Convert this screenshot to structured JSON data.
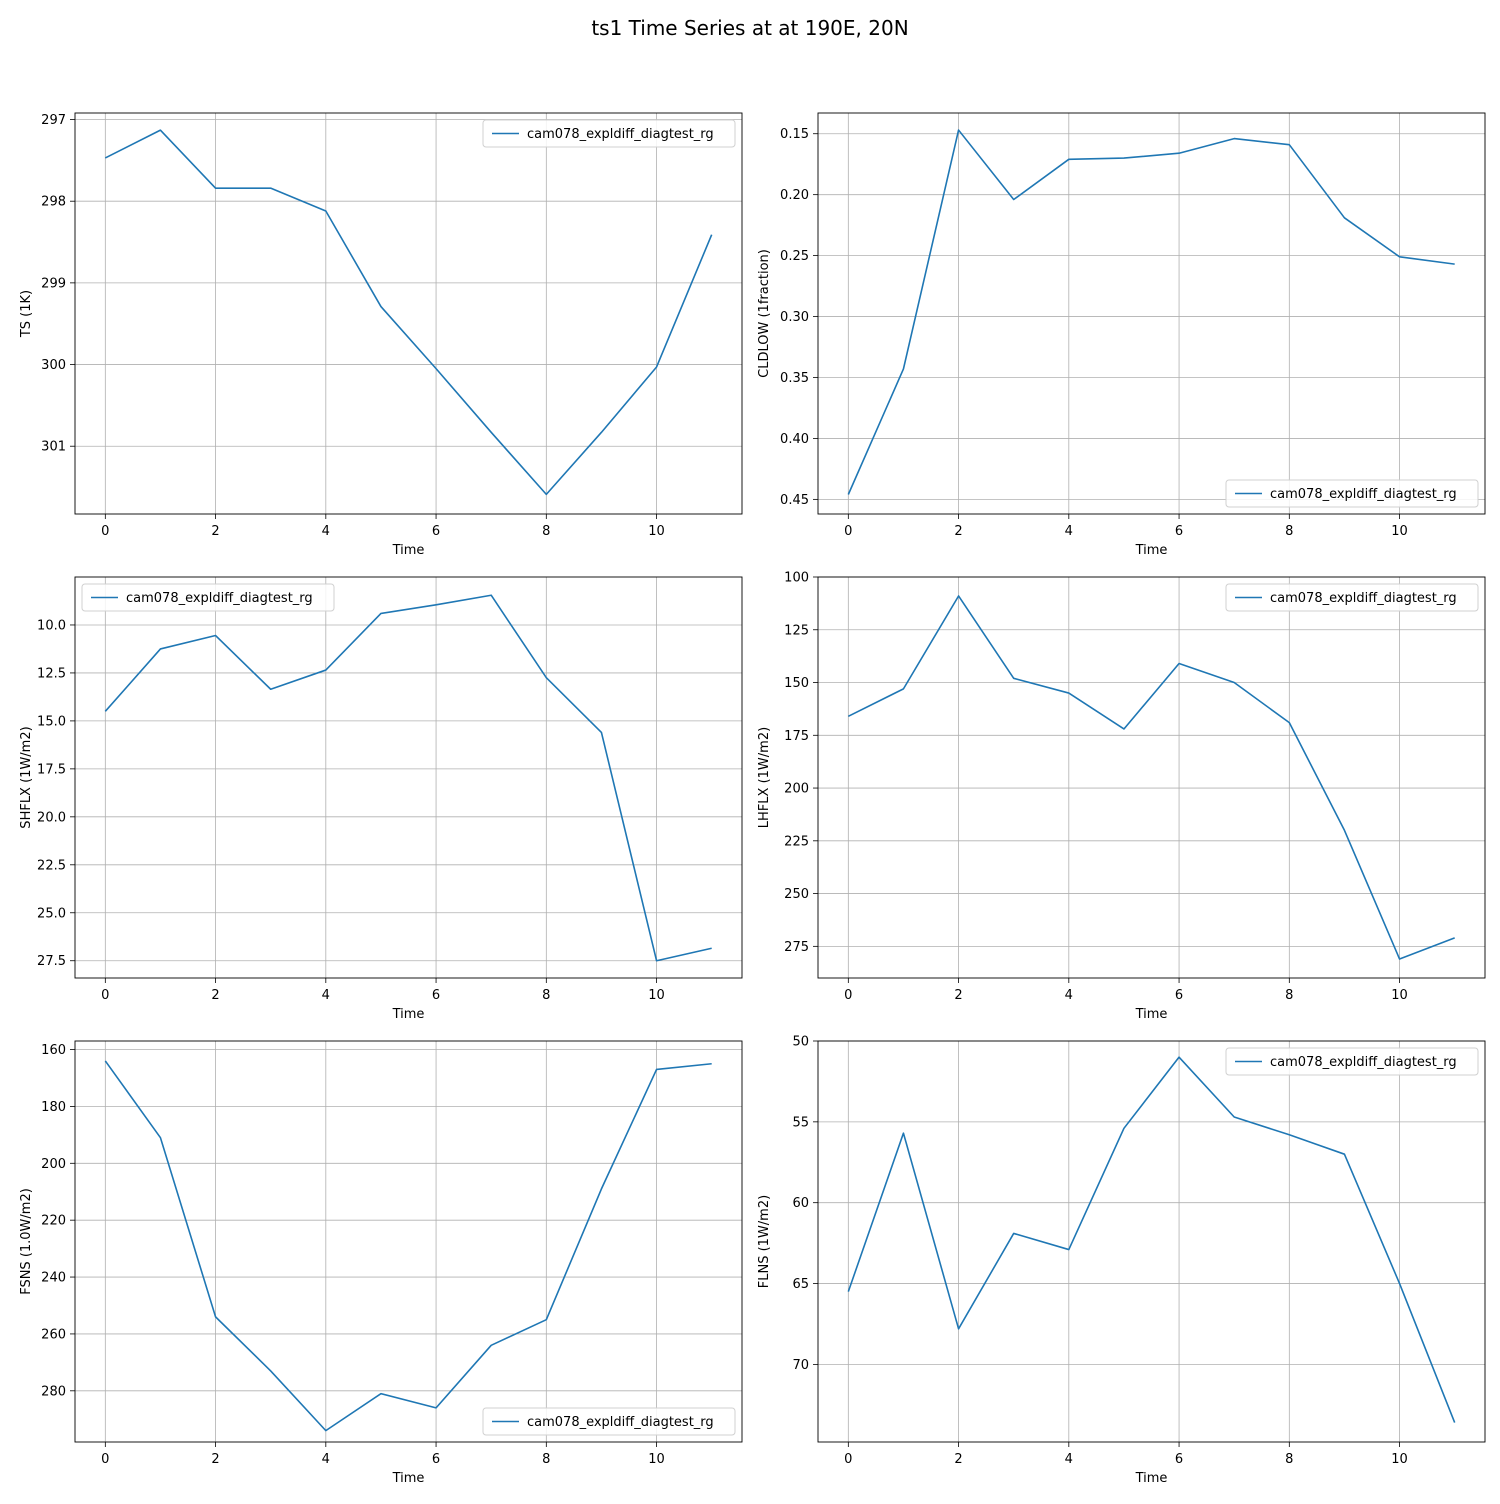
{
  "figure": {
    "title": "ts1 Time Series at at 190E, 20N"
  },
  "chart_data": [
    {
      "type": "line",
      "xlabel": "Time",
      "ylabel": "TS (1K)",
      "x": [
        0,
        1,
        2,
        3,
        4,
        5,
        6,
        7,
        8,
        9,
        10,
        11
      ],
      "xlim": [
        -0.55,
        11.55
      ],
      "xticks": [
        0,
        2,
        4,
        6,
        8,
        10
      ],
      "ylim": [
        301.83,
        296.92
      ],
      "yinverted": true,
      "yticks": [
        297,
        298,
        299,
        300,
        301
      ],
      "yticklabels": [
        "297",
        "298",
        "299",
        "300",
        "301"
      ],
      "grid": true,
      "legend": "top-right",
      "series": [
        {
          "name": "cam078_expldiff_diagtest_rg",
          "color": "#1f77b4",
          "values": [
            297.47,
            297.13,
            297.84,
            297.84,
            298.12,
            299.29,
            300.05,
            300.83,
            301.59,
            300.83,
            300.03,
            298.41
          ]
        }
      ]
    },
    {
      "type": "line",
      "xlabel": "Time",
      "ylabel": "CLDLOW (1fraction)",
      "x": [
        0,
        1,
        2,
        3,
        4,
        5,
        6,
        7,
        8,
        9,
        10,
        11
      ],
      "xlim": [
        -0.55,
        11.55
      ],
      "xticks": [
        0,
        2,
        4,
        6,
        8,
        10
      ],
      "ylim": [
        0.462,
        0.133
      ],
      "yinverted": true,
      "yticks": [
        0.15,
        0.2,
        0.25,
        0.3,
        0.35,
        0.4,
        0.45
      ],
      "yticklabels": [
        "0.15",
        "0.20",
        "0.25",
        "0.30",
        "0.35",
        "0.40",
        "0.45"
      ],
      "grid": true,
      "legend": "bottom-right",
      "series": [
        {
          "name": "cam078_expldiff_diagtest_rg",
          "color": "#1f77b4",
          "values": [
            0.446,
            0.343,
            0.147,
            0.204,
            0.171,
            0.17,
            0.166,
            0.154,
            0.159,
            0.219,
            0.251,
            0.257
          ]
        }
      ]
    },
    {
      "type": "line",
      "xlabel": "Time",
      "ylabel": "SHFLX (1W/m2)",
      "x": [
        0,
        1,
        2,
        3,
        4,
        5,
        6,
        7,
        8,
        9,
        10,
        11
      ],
      "xlim": [
        -0.55,
        11.55
      ],
      "xticks": [
        0,
        2,
        4,
        6,
        8,
        10
      ],
      "ylim": [
        28.4,
        7.5
      ],
      "yinverted": true,
      "yticks": [
        10.0,
        12.5,
        15.0,
        17.5,
        20.0,
        22.5,
        25.0,
        27.5
      ],
      "yticklabels": [
        "10.0",
        "12.5",
        "15.0",
        "17.5",
        "20.0",
        "22.5",
        "25.0",
        "27.5"
      ],
      "grid": true,
      "legend": "top-left",
      "series": [
        {
          "name": "cam078_expldiff_diagtest_rg",
          "color": "#1f77b4",
          "values": [
            14.5,
            11.25,
            10.55,
            13.35,
            12.35,
            9.4,
            8.95,
            8.45,
            12.75,
            15.6,
            27.5,
            26.85
          ]
        }
      ]
    },
    {
      "type": "line",
      "xlabel": "Time",
      "ylabel": "LHFLX (1W/m2)",
      "x": [
        0,
        1,
        2,
        3,
        4,
        5,
        6,
        7,
        8,
        9,
        10,
        11
      ],
      "xlim": [
        -0.55,
        11.55
      ],
      "xticks": [
        0,
        2,
        4,
        6,
        8,
        10
      ],
      "ylim": [
        290,
        100
      ],
      "yinverted": true,
      "yticks": [
        100,
        125,
        150,
        175,
        200,
        225,
        250,
        275
      ],
      "yticklabels": [
        "100",
        "125",
        "150",
        "175",
        "200",
        "225",
        "250",
        "275"
      ],
      "grid": true,
      "legend": "top-right",
      "series": [
        {
          "name": "cam078_expldiff_diagtest_rg",
          "color": "#1f77b4",
          "values": [
            166,
            153,
            109,
            148,
            155,
            172,
            141,
            150,
            169,
            220,
            281,
            271
          ]
        }
      ]
    },
    {
      "type": "line",
      "xlabel": "Time",
      "ylabel": "FSNS (1.0W/m2)",
      "x": [
        0,
        1,
        2,
        3,
        4,
        5,
        6,
        7,
        8,
        9,
        10,
        11
      ],
      "xlim": [
        -0.55,
        11.55
      ],
      "xticks": [
        0,
        2,
        4,
        6,
        8,
        10
      ],
      "ylim": [
        298,
        157
      ],
      "yinverted": true,
      "yticks": [
        160,
        180,
        200,
        220,
        240,
        260,
        280
      ],
      "yticklabels": [
        "160",
        "180",
        "200",
        "220",
        "240",
        "260",
        "280"
      ],
      "grid": true,
      "legend": "bottom-right",
      "series": [
        {
          "name": "cam078_expldiff_diagtest_rg",
          "color": "#1f77b4",
          "values": [
            164,
            191,
            254,
            273,
            294,
            281,
            286,
            264,
            255,
            209,
            167,
            165
          ]
        }
      ]
    },
    {
      "type": "line",
      "xlabel": "Time",
      "ylabel": "FLNS (1W/m2)",
      "x": [
        0,
        1,
        2,
        3,
        4,
        5,
        6,
        7,
        8,
        9,
        10,
        11
      ],
      "xlim": [
        -0.55,
        11.55
      ],
      "xticks": [
        0,
        2,
        4,
        6,
        8,
        10
      ],
      "ylim": [
        74.8,
        50.0
      ],
      "yinverted": true,
      "yticks": [
        50,
        55,
        60,
        65,
        70
      ],
      "yticklabels": [
        "50",
        "55",
        "60",
        "65",
        "70"
      ],
      "grid": true,
      "legend": "top-right",
      "series": [
        {
          "name": "cam078_expldiff_diagtest_rg",
          "color": "#1f77b4",
          "values": [
            65.5,
            55.7,
            67.8,
            61.9,
            62.9,
            55.4,
            51.0,
            54.7,
            55.8,
            57.0,
            65.0,
            73.6
          ]
        }
      ]
    }
  ]
}
